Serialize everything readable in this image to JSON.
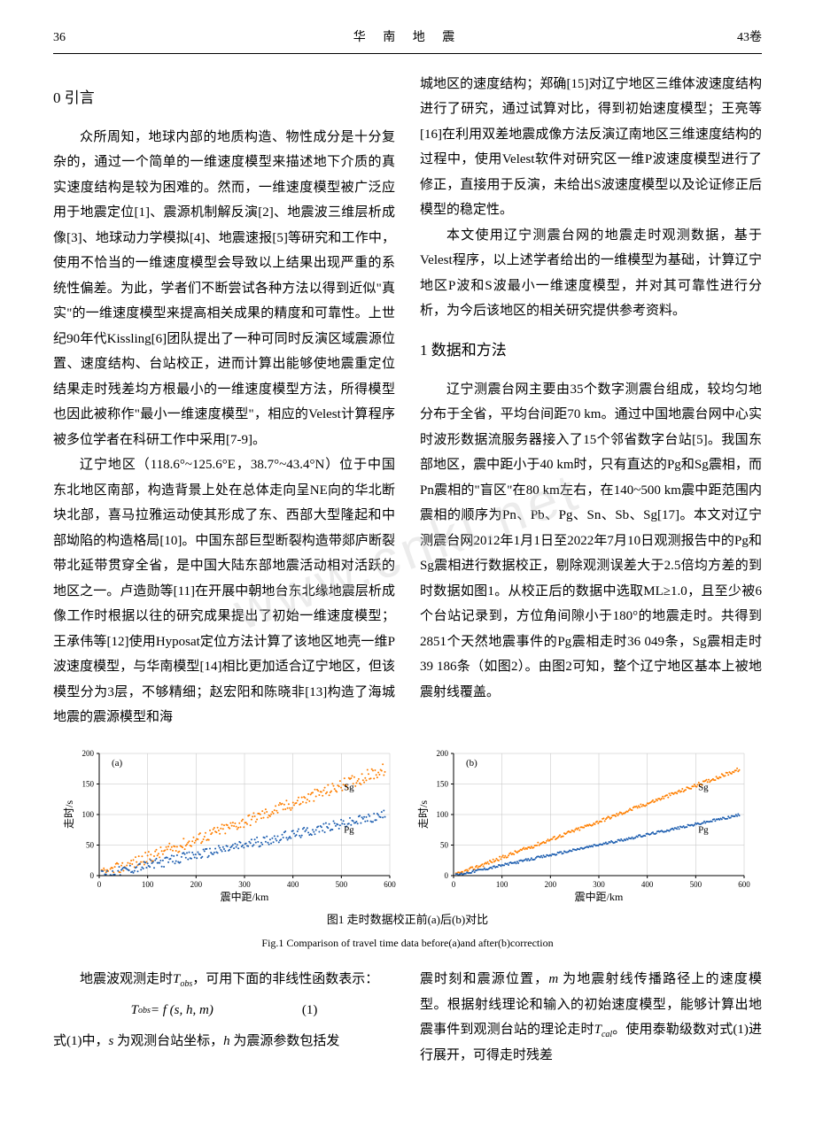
{
  "header": {
    "page": "36",
    "journal": "华 南 地 震",
    "volume": "43卷"
  },
  "watermark": "www.cnki.net",
  "sections": {
    "intro_num": "0",
    "intro_title": "引言",
    "method_num": "1",
    "method_title": "数据和方法"
  },
  "paragraphs": {
    "p1": "众所周知，地球内部的地质构造、物性成分是十分复杂的，通过一个简单的一维速度模型来描述地下介质的真实速度结构是较为困难的。然而，一维速度模型被广泛应用于地震定位[1]、震源机制解反演[2]、地震波三维层析成像[3]、地球动力学模拟[4]、地震速报[5]等研究和工作中，使用不恰当的一维速度模型会导致以上结果出现严重的系统性偏差。为此，学者们不断尝试各种方法以得到近似\"真实\"的一维速度模型来提高相关成果的精度和可靠性。上世纪90年代Kissling[6]团队提出了一种可同时反演区域震源位置、速度结构、台站校正，进而计算出能够使地震重定位结果走时残差均方根最小的一维速度模型方法，所得模型也因此被称作\"最小一维速度模型\"，相应的Velest计算程序被多位学者在科研工作中采用[7-9]。",
    "p2": "辽宁地区（118.6°~125.6°E，38.7°~43.4°N）位于中国东北地区南部，构造背景上处在总体走向呈NE向的华北断块北部，喜马拉雅运动使其形成了东、西部大型隆起和中部坳陷的构造格局[10]。中国东部巨型断裂构造带郯庐断裂带北延带贯穿全省，是中国大陆东部地震活动相对活跃的地区之一。卢造勋等[11]在开展中朝地台东北缘地震层析成像工作时根据以往的研究成果提出了初始一维速度模型；王承伟等[12]使用Hyposat定位方法计算了该地区地壳一维P波速度模型，与华南模型[14]相比更加适合辽宁地区，但该模型分为3层，不够精细；赵宏阳和陈晓非[13]构造了海城地震的震源模型和海",
    "p3": "城地区的速度结构；郑确[15]对辽宁地区三维体波速度结构进行了研究，通过试算对比，得到初始速度模型；王亮等[16]在利用双差地震成像方法反演辽南地区三维速度结构的过程中，使用Velest软件对研究区一维P波速度模型进行了修正，直接用于反演，未给出S波速度模型以及论证修正后模型的稳定性。",
    "p4": "本文使用辽宁测震台网的地震走时观测数据，基于Velest程序，以上述学者给出的一维模型为基础，计算辽宁地区P波和S波最小一维速度模型，并对其可靠性进行分析，为今后该地区的相关研究提供参考资料。",
    "p5": "辽宁测震台网主要由35个数字测震台组成，较均匀地分布于全省，平均台间距70 km。通过中国地震台网中心实时波形数据流服务器接入了15个邻省数字台站[5]。我国东部地区，震中距小于40 km时，只有直达的Pg和Sg震相，而Pn震相的\"盲区\"在80 km左右，在140~500 km震中距范围内震相的顺序为Pn、Pb、Pg、Sn、Sb、Sg[17]。本文对辽宁测震台网2012年1月1日至2022年7月10日观测报告中的Pg和Sg震相进行数据校正，剔除观测误差大于2.5倍均方差的到时数据如图1。从校正后的数据中选取ML≥1.0，且至少被6个台站记录到，方位角间隙小于180°的地震走时。共得到2851个天然地震事件的Pg震相走时36 049条，Sg震相走时39 186条（如图2）。由图2可知，整个辽宁地区基本上被地震射线覆盖。",
    "p6a": "地震波观测走时",
    "p6b": "，可用下面的非线性函数表示：",
    "p7a": "式(1)中，",
    "p7b": "为观测台站坐标，",
    "p7c": "为震源参数包括发",
    "p8a": "震时刻和震源位置，",
    "p8b": "为地震射线传播路径上的速度模型。根据射线理论和输入的初始速度模型，能够计算出地震事件到观测台站的理论走时",
    "p8c": "。使用泰勒级数对式(1)进行展开，可得走时残差"
  },
  "equation": {
    "lhs_var": "T",
    "lhs_sub": "obs",
    "eq": " = f (s, h, m)",
    "num": "(1)"
  },
  "inline_vars": {
    "Tobs_T": "T",
    "Tobs_sub": "obs",
    "s": "s",
    "h": "h",
    "m": "m",
    "Tcal_T": "T",
    "Tcal_sub": "cal"
  },
  "figure": {
    "caption_cn": "图1 走时数据校正前(a)后(b)对比",
    "caption_en": "Fig.1 Comparison of travel time data before(a)and after(b)correction",
    "charts": [
      {
        "panel_label": "(a)",
        "type": "scatter",
        "xlabel": "震中距/km",
        "ylabel": "走时/s",
        "xlim": [
          0,
          600
        ],
        "ylim": [
          0,
          200
        ],
        "xticks": [
          0,
          100,
          200,
          300,
          400,
          500,
          600
        ],
        "yticks": [
          0,
          50,
          100,
          150,
          200
        ],
        "background_color": "#ffffff",
        "grid_color": "#c0c0c0",
        "axis_color": "#000000",
        "label_fontsize": 12,
        "tick_fontsize": 9,
        "series": [
          {
            "name": "Sg",
            "color": "#ff7f00",
            "marker": "circle",
            "marker_size": 1.0,
            "slope": 0.295,
            "intercept": 0,
            "scatter_spread": 10,
            "x_range": [
              5,
              590
            ],
            "annot_x": 505,
            "annot_y": 140
          },
          {
            "name": "Pg",
            "color": "#1f5fb0",
            "marker": "circle",
            "marker_size": 1.0,
            "slope": 0.168,
            "intercept": 0,
            "scatter_spread": 8,
            "x_range": [
              5,
              590
            ],
            "annot_x": 505,
            "annot_y": 70
          }
        ]
      },
      {
        "panel_label": "(b)",
        "type": "scatter",
        "xlabel": "震中距/km",
        "ylabel": "走时/s",
        "xlim": [
          0,
          600
        ],
        "ylim": [
          0,
          200
        ],
        "xticks": [
          0,
          100,
          200,
          300,
          400,
          500,
          600
        ],
        "yticks": [
          0,
          50,
          100,
          150,
          200
        ],
        "background_color": "#ffffff",
        "grid_color": "#c0c0c0",
        "axis_color": "#000000",
        "label_fontsize": 12,
        "tick_fontsize": 9,
        "series": [
          {
            "name": "Sg",
            "color": "#ff7f00",
            "marker": "circle",
            "marker_size": 1.0,
            "slope": 0.295,
            "intercept": 0,
            "scatter_spread": 3,
            "x_range": [
              5,
              590
            ],
            "annot_x": 505,
            "annot_y": 140
          },
          {
            "name": "Pg",
            "color": "#1f5fb0",
            "marker": "circle",
            "marker_size": 1.0,
            "slope": 0.168,
            "intercept": 0,
            "scatter_spread": 2,
            "x_range": [
              5,
              590
            ],
            "annot_x": 505,
            "annot_y": 70
          }
        ]
      }
    ]
  }
}
